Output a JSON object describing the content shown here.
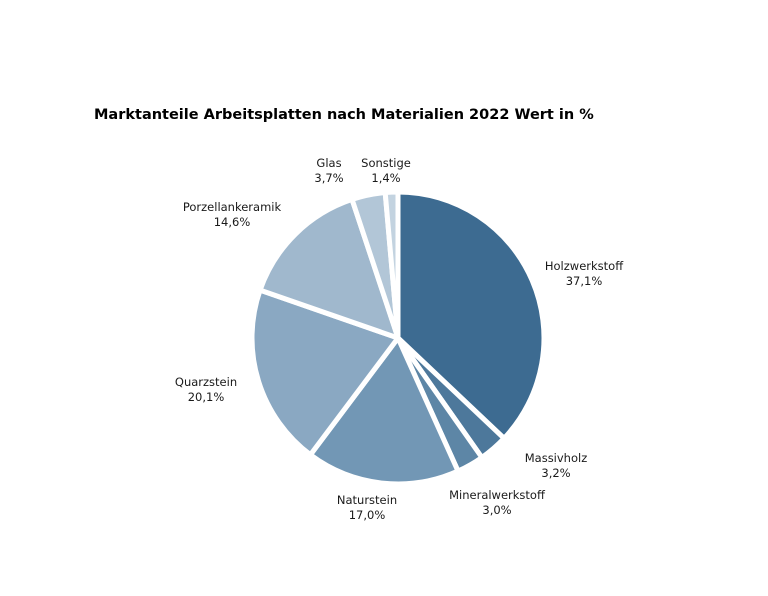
{
  "chart_data": {
    "type": "pie",
    "title": "Marktanteile Arbeitsplatten nach Materialien 2022 Wert in %",
    "unit": "%",
    "slices": [
      {
        "label": "Holzwerkstoff",
        "value": 37.1,
        "value_label": "37,1%",
        "color": "#3d6b91"
      },
      {
        "label": "Massivholz",
        "value": 3.2,
        "value_label": "3,2%",
        "color": "#4d789b"
      },
      {
        "label": "Mineralwerkstoff",
        "value": 3.0,
        "value_label": "3,0%",
        "color": "#5d86a6"
      },
      {
        "label": "Naturstein",
        "value": 17.0,
        "value_label": "17,0%",
        "color": "#7297b5"
      },
      {
        "label": "Quarzstein",
        "value": 20.1,
        "value_label": "20,1%",
        "color": "#8aa8c2"
      },
      {
        "label": "Porzellankeramik",
        "value": 14.6,
        "value_label": "14,6%",
        "color": "#a0b8cd"
      },
      {
        "label": "Glas",
        "value": 3.7,
        "value_label": "3,7%",
        "color": "#b2c6d7"
      },
      {
        "label": "Sonstige",
        "value": 1.4,
        "value_label": "1,4%",
        "color": "#c3d3e0"
      }
    ]
  }
}
